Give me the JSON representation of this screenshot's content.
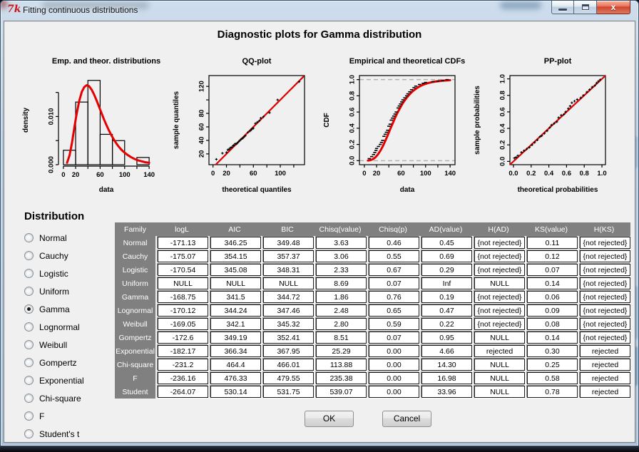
{
  "window": {
    "title": "Fitting continuous distributions",
    "icon_text": "7k",
    "minimize": "minimize",
    "maximize": "maximize",
    "close": "close",
    "close_glyph": "x"
  },
  "main_title": "Diagnostic plots for Gamma distribution",
  "distribution_panel": {
    "heading": "Distribution",
    "selected": "Gamma",
    "options": [
      "Normal",
      "Cauchy",
      "Logistic",
      "Uniform",
      "Gamma",
      "Lognormal",
      "Weibull",
      "Gompertz",
      "Exponential",
      "Chi-square",
      "F",
      "Student's t"
    ]
  },
  "table": {
    "columns": [
      "Family",
      "logL",
      "AIC",
      "BIC",
      "Chisq(value)",
      "Chisq(p)",
      "AD(value)",
      "H(AD)",
      "KS(value)",
      "H(KS)"
    ],
    "rows": [
      [
        "Normal",
        "-171.13",
        "346.25",
        "349.48",
        "3.63",
        "0.46",
        "0.45",
        "{not rejected}",
        "0.11",
        "{not rejected}"
      ],
      [
        "Cauchy",
        "-175.07",
        "354.15",
        "357.37",
        "3.06",
        "0.55",
        "0.69",
        "{not rejected}",
        "0.12",
        "{not rejected}"
      ],
      [
        "Logistic",
        "-170.54",
        "345.08",
        "348.31",
        "2.33",
        "0.67",
        "0.29",
        "{not rejected}",
        "0.07",
        "{not rejected}"
      ],
      [
        "Uniform",
        "NULL",
        "NULL",
        "NULL",
        "8.69",
        "0.07",
        "Inf",
        "NULL",
        "0.14",
        "{not rejected}"
      ],
      [
        "Gamma",
        "-168.75",
        "341.5",
        "344.72",
        "1.86",
        "0.76",
        "0.19",
        "{not rejected}",
        "0.06",
        "{not rejected}"
      ],
      [
        "Lognormal",
        "-170.12",
        "344.24",
        "347.46",
        "2.48",
        "0.65",
        "0.47",
        "{not rejected}",
        "0.09",
        "{not rejected}"
      ],
      [
        "Weibull",
        "-169.05",
        "342.1",
        "345.32",
        "2.80",
        "0.59",
        "0.22",
        "{not rejected}",
        "0.08",
        "{not rejected}"
      ],
      [
        "Gompertz",
        "-172.6",
        "349.19",
        "352.41",
        "8.51",
        "0.07",
        "0.95",
        "NULL",
        "0.14",
        "{not rejected}"
      ],
      [
        "Exponential",
        "-182.17",
        "366.34",
        "367.95",
        "25.29",
        "0.00",
        "4.66",
        "rejected",
        "0.30",
        "rejected"
      ],
      [
        "Chi-square",
        "-231.2",
        "464.4",
        "466.01",
        "113.88",
        "0.00",
        "14.30",
        "NULL",
        "0.25",
        "rejected"
      ],
      [
        "F",
        "-236.16",
        "476.33",
        "479.55",
        "235.38",
        "0.00",
        "16.98",
        "NULL",
        "0.58",
        "rejected"
      ],
      [
        "Student",
        "-264.07",
        "530.14",
        "531.75",
        "539.07",
        "0.00",
        "33.96",
        "NULL",
        "0.78",
        "rejected"
      ]
    ]
  },
  "buttons": {
    "ok": "OK",
    "cancel": "Cancel"
  },
  "colors": {
    "curve_red": "#e60000",
    "table_header_gray": "#808080",
    "content_bg": "#f0f0f0",
    "titlebar_blue": "#b3c9de",
    "close_red": "#ce452f"
  },
  "chart_data": [
    {
      "type": "bar",
      "kind": "emp-theor-distributions",
      "title": "Emp. and theor. distributions",
      "xlabel": "data",
      "ylabel": "density",
      "xlim": [
        -8,
        148
      ],
      "ylim": [
        0,
        0.0185
      ],
      "box": false,
      "xticks": [
        0,
        20,
        40,
        60,
        80,
        100,
        120,
        140
      ],
      "xtick_labels": [
        "0",
        "20",
        "",
        "60",
        "",
        "100",
        "",
        "140"
      ],
      "yticks": [
        0,
        0.005,
        0.01,
        0.015
      ],
      "ytick_labels": [
        "0.000",
        "",
        "0.010",
        ""
      ],
      "breaks": [
        0,
        20,
        40,
        60,
        80,
        100,
        120,
        140
      ],
      "values": [
        0.003,
        0.013,
        0.0175,
        0.0063,
        0.005,
        0,
        0.0015
      ],
      "curve": [
        [
          6,
          0.0004
        ],
        [
          10,
          0.0019
        ],
        [
          14,
          0.0045
        ],
        [
          18,
          0.0078
        ],
        [
          22,
          0.0108
        ],
        [
          26,
          0.0133
        ],
        [
          30,
          0.0151
        ],
        [
          34,
          0.0161
        ],
        [
          38,
          0.0165
        ],
        [
          42,
          0.0163
        ],
        [
          46,
          0.0156
        ],
        [
          50,
          0.0146
        ],
        [
          54,
          0.0134
        ],
        [
          58,
          0.0121
        ],
        [
          62,
          0.0108
        ],
        [
          66,
          0.0095
        ],
        [
          70,
          0.0083
        ],
        [
          74,
          0.0072
        ],
        [
          78,
          0.0062
        ],
        [
          82,
          0.0053
        ],
        [
          86,
          0.0045
        ],
        [
          90,
          0.0038
        ],
        [
          94,
          0.0032
        ],
        [
          98,
          0.0027
        ],
        [
          104,
          0.0021
        ],
        [
          110,
          0.0016
        ],
        [
          116,
          0.0012
        ],
        [
          122,
          0.0009
        ],
        [
          128,
          0.0007
        ],
        [
          134,
          0.0005
        ],
        [
          140,
          0.0004
        ]
      ]
    },
    {
      "type": "scatter",
      "kind": "qq",
      "title": "QQ-plot",
      "xlabel": "theoretical quantiles",
      "ylabel": "sample quantiles",
      "xlim": [
        -6,
        136
      ],
      "ylim": [
        4,
        136
      ],
      "box": true,
      "xticks": [
        0,
        20,
        40,
        60,
        80,
        100,
        120
      ],
      "xtick_labels": [
        "0",
        "20",
        "",
        "60",
        "",
        "100",
        ""
      ],
      "yticks": [
        20,
        40,
        60,
        80,
        100,
        120
      ],
      "ytick_labels": [
        "20",
        "40",
        "60",
        "80",
        "",
        "120"
      ],
      "line": [
        [
          4,
          4
        ],
        [
          135,
          135
        ]
      ],
      "points": [
        [
          5,
          12
        ],
        [
          14,
          21
        ],
        [
          20,
          22
        ],
        [
          22,
          26
        ],
        [
          24,
          27
        ],
        [
          26,
          29
        ],
        [
          28,
          30
        ],
        [
          30,
          32
        ],
        [
          31,
          33
        ],
        [
          33,
          35
        ],
        [
          35,
          35
        ],
        [
          36,
          36
        ],
        [
          38,
          38
        ],
        [
          40,
          40
        ],
        [
          42,
          42
        ],
        [
          44,
          43
        ],
        [
          46,
          45
        ],
        [
          48,
          47
        ],
        [
          52,
          52
        ],
        [
          55,
          54
        ],
        [
          57,
          56
        ],
        [
          58,
          57
        ],
        [
          60,
          58
        ],
        [
          63,
          65
        ],
        [
          66,
          67
        ],
        [
          69,
          69
        ],
        [
          71,
          73
        ],
        [
          75,
          75
        ],
        [
          84,
          81
        ],
        [
          96,
          100
        ],
        [
          128,
          127
        ]
      ]
    },
    {
      "type": "line",
      "kind": "cdf",
      "title": "Empirical and theoretical CDFs",
      "xlabel": "data",
      "ylabel": "CDF",
      "xlim": [
        -8,
        148
      ],
      "ylim": [
        -0.05,
        1.05
      ],
      "box": true,
      "dashed_hlines": [
        0,
        1
      ],
      "xticks": [
        0,
        20,
        40,
        60,
        80,
        100,
        120,
        140
      ],
      "xtick_labels": [
        "0",
        "20",
        "",
        "60",
        "",
        "100",
        "",
        "140"
      ],
      "yticks": [
        0,
        0.2,
        0.4,
        0.6,
        0.8,
        1.0
      ],
      "ytick_labels": [
        "0.0",
        "0.2",
        "0.4",
        "0.6",
        "0.8",
        "1.0"
      ],
      "curve": [
        [
          6,
          0.001
        ],
        [
          10,
          0.006
        ],
        [
          14,
          0.018
        ],
        [
          18,
          0.04
        ],
        [
          22,
          0.075
        ],
        [
          26,
          0.12
        ],
        [
          30,
          0.175
        ],
        [
          34,
          0.24
        ],
        [
          38,
          0.31
        ],
        [
          42,
          0.385
        ],
        [
          46,
          0.455
        ],
        [
          50,
          0.525
        ],
        [
          54,
          0.59
        ],
        [
          58,
          0.645
        ],
        [
          62,
          0.7
        ],
        [
          66,
          0.745
        ],
        [
          70,
          0.785
        ],
        [
          74,
          0.82
        ],
        [
          78,
          0.85
        ],
        [
          82,
          0.875
        ],
        [
          86,
          0.897
        ],
        [
          90,
          0.915
        ],
        [
          94,
          0.93
        ],
        [
          98,
          0.943
        ],
        [
          104,
          0.957
        ],
        [
          110,
          0.968
        ],
        [
          116,
          0.976
        ],
        [
          122,
          0.982
        ],
        [
          128,
          0.987
        ],
        [
          134,
          0.99
        ],
        [
          140,
          0.993
        ]
      ],
      "emp_points": [
        [
          8,
          0.025
        ],
        [
          12,
          0.05
        ],
        [
          15,
          0.075
        ],
        [
          17,
          0.1
        ],
        [
          19,
          0.125
        ],
        [
          20,
          0.15
        ],
        [
          23,
          0.175
        ],
        [
          26,
          0.2
        ],
        [
          28,
          0.225
        ],
        [
          30,
          0.25
        ],
        [
          32,
          0.3
        ],
        [
          34,
          0.325
        ],
        [
          36,
          0.35
        ],
        [
          38,
          0.375
        ],
        [
          40,
          0.425
        ],
        [
          42,
          0.45
        ],
        [
          44,
          0.5
        ],
        [
          46,
          0.525
        ],
        [
          48,
          0.55
        ],
        [
          50,
          0.575
        ],
        [
          52,
          0.6
        ],
        [
          55,
          0.65
        ],
        [
          57,
          0.675
        ],
        [
          59,
          0.7
        ],
        [
          61,
          0.725
        ],
        [
          63,
          0.75
        ],
        [
          66,
          0.775
        ],
        [
          69,
          0.8
        ],
        [
          71,
          0.825
        ],
        [
          74,
          0.85
        ],
        [
          77,
          0.875
        ],
        [
          81,
          0.9
        ],
        [
          84,
          0.92
        ],
        [
          90,
          0.94
        ],
        [
          96,
          0.955
        ],
        [
          100,
          0.965
        ],
        [
          112,
          0.975
        ],
        [
          120,
          0.98
        ],
        [
          128,
          0.985
        ],
        [
          135,
          1.0
        ]
      ]
    },
    {
      "type": "scatter",
      "kind": "pp",
      "title": "PP-plot",
      "xlabel": "theoretical probabilities",
      "ylabel": "sample probabilities",
      "xlim": [
        -0.04,
        1.04
      ],
      "ylim": [
        -0.04,
        1.04
      ],
      "box": true,
      "xticks": [
        0,
        0.2,
        0.4,
        0.6,
        0.8,
        1.0
      ],
      "xtick_labels": [
        "0.0",
        "0.2",
        "0.4",
        "0.6",
        "0.8",
        "1.0"
      ],
      "yticks": [
        0,
        0.2,
        0.4,
        0.6,
        0.8,
        1.0
      ],
      "ytick_labels": [
        "0.0",
        "0.2",
        "0.4",
        "0.6",
        "0.8",
        "1.0"
      ],
      "line": [
        [
          -0.04,
          -0.04
        ],
        [
          1.04,
          1.04
        ]
      ],
      "points": [
        [
          0.01,
          0.04
        ],
        [
          0.03,
          0.05
        ],
        [
          0.05,
          0.07
        ],
        [
          0.09,
          0.11
        ],
        [
          0.12,
          0.13
        ],
        [
          0.15,
          0.15
        ],
        [
          0.18,
          0.17
        ],
        [
          0.21,
          0.2
        ],
        [
          0.24,
          0.23
        ],
        [
          0.27,
          0.26
        ],
        [
          0.3,
          0.3
        ],
        [
          0.32,
          0.31
        ],
        [
          0.35,
          0.34
        ],
        [
          0.38,
          0.37
        ],
        [
          0.41,
          0.41
        ],
        [
          0.43,
          0.44
        ],
        [
          0.46,
          0.46
        ],
        [
          0.49,
          0.48
        ],
        [
          0.51,
          0.53
        ],
        [
          0.54,
          0.56
        ],
        [
          0.57,
          0.57
        ],
        [
          0.59,
          0.6
        ],
        [
          0.62,
          0.64
        ],
        [
          0.64,
          0.67
        ],
        [
          0.66,
          0.71
        ],
        [
          0.69,
          0.73
        ],
        [
          0.72,
          0.75
        ],
        [
          0.76,
          0.77
        ],
        [
          0.79,
          0.8
        ],
        [
          0.83,
          0.84
        ],
        [
          0.86,
          0.87
        ],
        [
          0.89,
          0.9
        ],
        [
          0.92,
          0.92
        ],
        [
          0.94,
          0.95
        ],
        [
          0.96,
          0.97
        ],
        [
          0.98,
          0.99
        ]
      ]
    }
  ]
}
